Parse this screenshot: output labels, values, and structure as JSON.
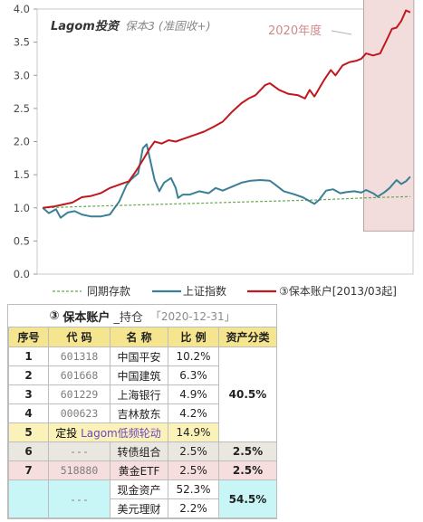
{
  "chart_data": {
    "type": "line",
    "title_brand": "Lagom投资",
    "title_sub": "保本3 (准固收+)",
    "annotation": "2020年度",
    "ylim": [
      0,
      4.0
    ],
    "yticks": [
      "0.0",
      "0.5",
      "1.0",
      "1.5",
      "2.0",
      "2.5",
      "3.0",
      "3.5",
      "4.0"
    ],
    "x_start": "2013-03",
    "x_end": "2020-12",
    "highlight_x": [
      2020.0,
      2020.99
    ],
    "colors": {
      "deposit": "#6aa84f",
      "shindex": "#3b7f96",
      "account": "#c0181f",
      "highlight_fill": "#f2dcdc",
      "highlight_stroke": "#b8a4a4",
      "axis_text": "#4a4a4a",
      "grid": "#d9d9d9"
    },
    "series": [
      {
        "name": "同期存款",
        "key": "deposit",
        "style": "dashed",
        "x": [
          2013.17,
          2014.0,
          2015.0,
          2016.0,
          2017.0,
          2018.0,
          2019.0,
          2020.0,
          2020.99
        ],
        "y": [
          1.0,
          1.02,
          1.04,
          1.06,
          1.08,
          1.1,
          1.12,
          1.15,
          1.17
        ]
      },
      {
        "name": "上证指数",
        "key": "shindex",
        "style": "solid",
        "x": [
          2013.17,
          2013.3,
          2013.45,
          2013.55,
          2013.7,
          2013.85,
          2014.0,
          2014.2,
          2014.4,
          2014.6,
          2014.8,
          2014.95,
          2015.05,
          2015.2,
          2015.3,
          2015.38,
          2015.45,
          2015.55,
          2015.65,
          2015.75,
          2015.9,
          2016.0,
          2016.05,
          2016.15,
          2016.3,
          2016.5,
          2016.7,
          2016.85,
          2017.0,
          2017.2,
          2017.4,
          2017.6,
          2017.8,
          2018.0,
          2018.1,
          2018.3,
          2018.5,
          2018.7,
          2018.85,
          2018.95,
          2019.05,
          2019.2,
          2019.35,
          2019.5,
          2019.65,
          2019.8,
          2019.95,
          2020.05,
          2020.2,
          2020.3,
          2020.45,
          2020.55,
          2020.7,
          2020.8,
          2020.9,
          2020.99
        ],
        "y": [
          1.0,
          0.92,
          0.98,
          0.85,
          0.93,
          0.95,
          0.9,
          0.87,
          0.87,
          0.9,
          1.1,
          1.34,
          1.43,
          1.52,
          1.9,
          1.96,
          1.74,
          1.42,
          1.25,
          1.38,
          1.45,
          1.3,
          1.15,
          1.2,
          1.2,
          1.25,
          1.22,
          1.3,
          1.26,
          1.32,
          1.38,
          1.41,
          1.42,
          1.41,
          1.36,
          1.25,
          1.21,
          1.16,
          1.1,
          1.06,
          1.12,
          1.26,
          1.28,
          1.22,
          1.24,
          1.25,
          1.23,
          1.27,
          1.22,
          1.17,
          1.24,
          1.3,
          1.42,
          1.36,
          1.4,
          1.47
        ]
      },
      {
        "name": "③保本账户[2013/03起]",
        "key": "account",
        "style": "solid",
        "x": [
          2013.17,
          2013.4,
          2013.6,
          2013.8,
          2014.0,
          2014.2,
          2014.4,
          2014.6,
          2014.8,
          2015.0,
          2015.15,
          2015.3,
          2015.45,
          2015.55,
          2015.7,
          2015.85,
          2016.0,
          2016.2,
          2016.4,
          2016.6,
          2016.8,
          2017.0,
          2017.2,
          2017.4,
          2017.55,
          2017.7,
          2017.9,
          2018.0,
          2018.2,
          2018.4,
          2018.6,
          2018.75,
          2018.85,
          2018.95,
          2019.05,
          2019.15,
          2019.3,
          2019.4,
          2019.55,
          2019.7,
          2019.85,
          2019.95,
          2020.05,
          2020.2,
          2020.35,
          2020.5,
          2020.6,
          2020.7,
          2020.8,
          2020.9,
          2020.99
        ],
        "y": [
          1.0,
          1.02,
          1.05,
          1.08,
          1.16,
          1.18,
          1.22,
          1.3,
          1.35,
          1.4,
          1.55,
          1.72,
          1.9,
          2.0,
          1.97,
          2.02,
          2.0,
          2.05,
          2.1,
          2.15,
          2.22,
          2.3,
          2.45,
          2.58,
          2.65,
          2.7,
          2.85,
          2.88,
          2.78,
          2.72,
          2.7,
          2.65,
          2.78,
          2.68,
          2.8,
          2.92,
          3.08,
          3.0,
          3.15,
          3.2,
          3.22,
          3.25,
          3.33,
          3.3,
          3.33,
          3.55,
          3.7,
          3.72,
          3.82,
          3.98,
          3.95
        ]
      }
    ]
  },
  "holdings": {
    "circled": "③",
    "account": "保本账户",
    "hold": "_持仓",
    "date": "「2020-12-31」",
    "headers": [
      "序号",
      "代 码",
      "名 称",
      "比 例",
      "资产分类"
    ],
    "rows": [
      {
        "seq": "1",
        "code": "601318",
        "name": "中国平安",
        "ratio": "10.2%"
      },
      {
        "seq": "2",
        "code": "601668",
        "name": "中国建筑",
        "ratio": "6.3%"
      },
      {
        "seq": "3",
        "code": "601229",
        "name": "上海银行",
        "ratio": "4.9%"
      },
      {
        "seq": "4",
        "code": "000623",
        "name": "吉林敖东",
        "ratio": "4.2%"
      },
      {
        "seq": "5",
        "lead": "定投",
        "name": "Lagom低频轮动",
        "ratio": "14.9%"
      },
      {
        "seq": "6",
        "code": "---",
        "name": "转债组合",
        "ratio": "2.5%",
        "alloc": "2.5%"
      },
      {
        "seq": "7",
        "code": "518880",
        "name": "黄金ETF",
        "ratio": "2.5%",
        "alloc": "2.5%"
      },
      {
        "seq": "",
        "code": "---",
        "name": "现金资产",
        "ratio": "52.3%"
      },
      {
        "seq": "",
        "code": "",
        "name": "美元理财",
        "ratio": "2.2%"
      }
    ],
    "alloc_equity": "40.5%",
    "alloc_cash": "54.5%"
  }
}
